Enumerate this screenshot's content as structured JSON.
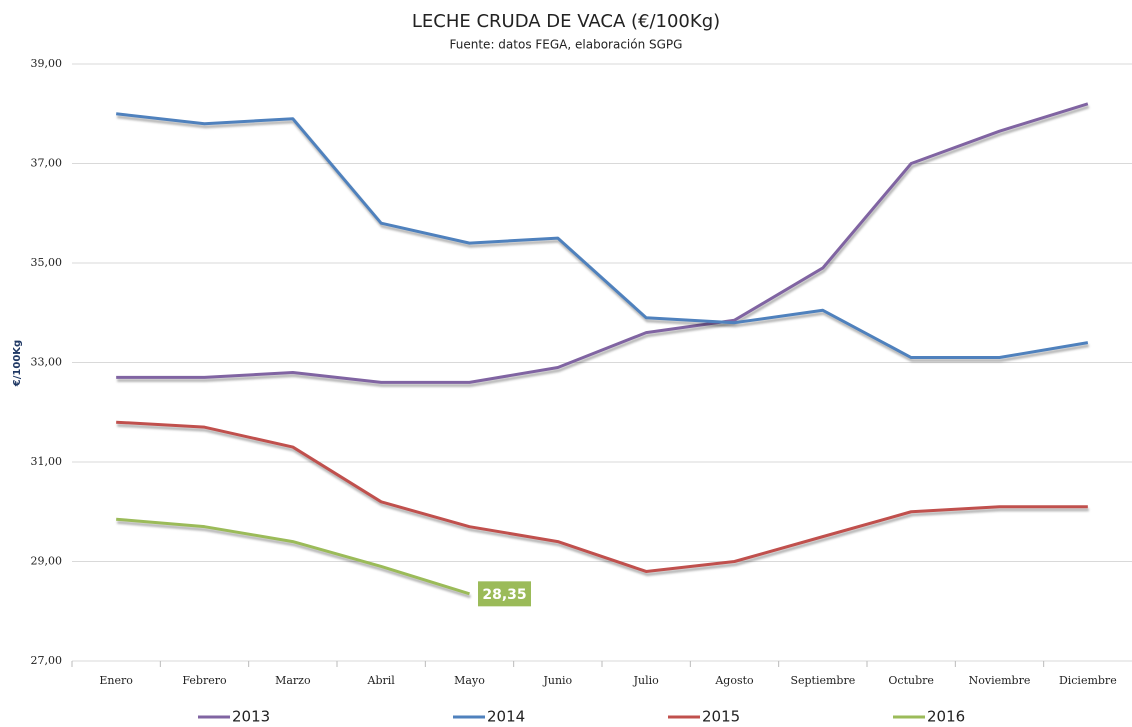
{
  "chart_data": {
    "type": "line",
    "title": "LECHE CRUDA DE VACA (€/100Kg)",
    "subtitle": "Fuente: datos FEGA, elaboración SGPG",
    "y_label": "€/100Kg",
    "categories": [
      "Enero",
      "Febrero",
      "Marzo",
      "Abril",
      "Mayo",
      "Junio",
      "Julio",
      "Agosto",
      "Septiembre",
      "Octubre",
      "Noviembre",
      "Diciembre"
    ],
    "series": [
      {
        "name": "2013",
        "color": "#8064a2",
        "values": [
          32.7,
          32.7,
          32.8,
          32.6,
          32.6,
          32.9,
          33.6,
          33.85,
          34.9,
          37.0,
          37.65,
          38.2
        ]
      },
      {
        "name": "2014",
        "color": "#4f81bd",
        "values": [
          38.0,
          37.8,
          37.9,
          35.8,
          35.4,
          35.5,
          33.9,
          33.8,
          34.05,
          33.1,
          33.1,
          33.4
        ]
      },
      {
        "name": "2015",
        "color": "#c0504d",
        "values": [
          31.8,
          31.7,
          31.3,
          30.2,
          29.7,
          29.4,
          28.8,
          29.0,
          29.5,
          30.0,
          30.1,
          30.1
        ]
      },
      {
        "name": "2016",
        "color": "#9bbb59",
        "values": [
          29.85,
          29.7,
          29.4,
          28.9,
          28.35,
          null,
          null,
          null,
          null,
          null,
          null,
          null
        ],
        "value_labels": [
          null,
          null,
          null,
          null,
          "28,35",
          null,
          null,
          null,
          null,
          null,
          null,
          null
        ]
      }
    ],
    "ylim": [
      27,
      39
    ],
    "yticks": [
      {
        "value": 27,
        "label": "27,00"
      },
      {
        "value": 29,
        "label": "29,00"
      },
      {
        "value": 31,
        "label": "31,00"
      },
      {
        "value": 33,
        "label": "33,00"
      },
      {
        "value": 35,
        "label": "35,00"
      },
      {
        "value": 37,
        "label": "37,00"
      },
      {
        "value": 39,
        "label": "39,00"
      }
    ],
    "grid": true,
    "legend": "bottom"
  }
}
